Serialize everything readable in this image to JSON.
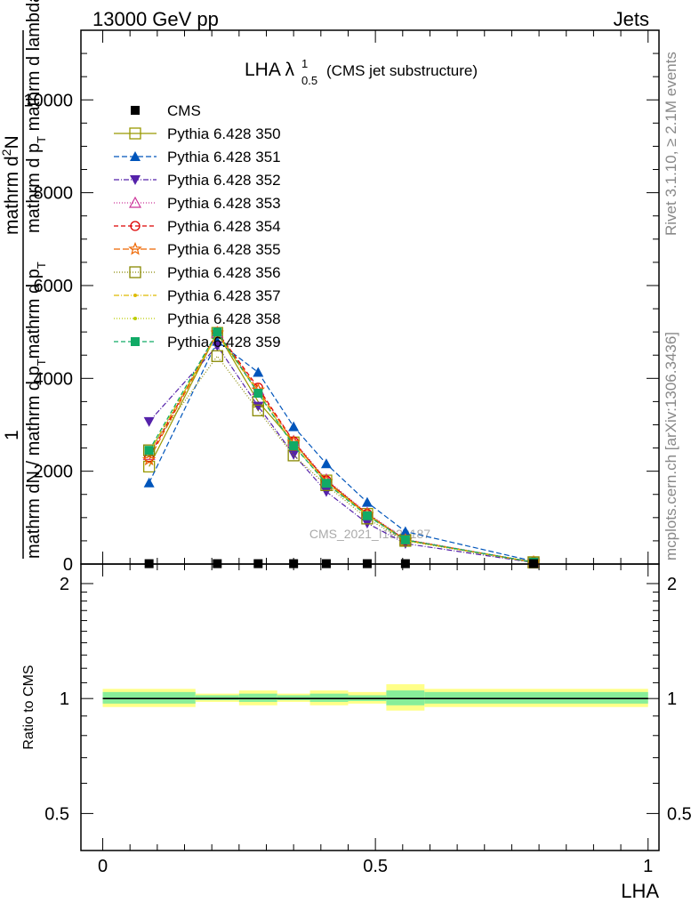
{
  "header": {
    "energy": "13000 GeV pp",
    "category": "Jets"
  },
  "side_labels": {
    "rivet": "Rivet 3.1.10, ≥ 2.1M events",
    "mcplots": "mcplots.cern.ch [arXiv:1306.3436]"
  },
  "watermark": "CMS_2021_I1920187",
  "chart_data": [
    {
      "type": "line",
      "title": "LHA λ",
      "title_sup": "1",
      "title_sub": "0.5",
      "title_note": "(CMS jet substructure)",
      "ylabel": "1 / mathrm dN / mathrm d p_T mathrm d p_T mathrm d^2N / mathrm d p_T mathrm d lambda",
      "ylabel_parts": [
        "1",
        "mathrm dN / mathrm d p",
        "T",
        "mathrm d p",
        "T",
        "mathrm d",
        "2",
        "N",
        "mathrm d p",
        "T",
        " mathrm d lambda"
      ],
      "xlim": [
        -0.04,
        1.02
      ],
      "ylim": [
        0,
        11500
      ],
      "y_ticks": [
        0,
        2000,
        4000,
        6000,
        8000,
        10000
      ],
      "x": [
        0.085,
        0.21,
        0.285,
        0.35,
        0.41,
        0.485,
        0.555,
        0.79
      ],
      "series": [
        {
          "name": "CMS",
          "color": "#000000",
          "marker": "square-filled",
          "dash": "",
          "values": [
            8,
            8,
            8,
            8,
            8,
            8,
            8,
            8
          ]
        },
        {
          "name": "Pythia 6.428 350",
          "color": "#999900",
          "marker": "square-open",
          "dash": "",
          "values": [
            2100,
            4980,
            3500,
            2620,
            1800,
            1080,
            520,
            40
          ]
        },
        {
          "name": "Pythia 6.428 351",
          "color": "#0055bb",
          "marker": "triangle-up-filled",
          "dash": "6,3",
          "values": [
            1750,
            4800,
            4130,
            2960,
            2160,
            1330,
            700,
            60
          ]
        },
        {
          "name": "Pythia 6.428 352",
          "color": "#5522aa",
          "marker": "triangle-down-filled",
          "dash": "6,2,1,2",
          "values": [
            3070,
            4700,
            3400,
            2360,
            1560,
            880,
            440,
            30
          ]
        },
        {
          "name": "Pythia 6.428 353",
          "color": "#cc3399",
          "marker": "triangle-up-open",
          "dash": "1,2",
          "values": [
            2350,
            4980,
            3750,
            2650,
            1820,
            1100,
            530,
            40
          ]
        },
        {
          "name": "Pythia 6.428 354",
          "color": "#dd0000",
          "marker": "circle-open",
          "dash": "5,3",
          "values": [
            2300,
            5000,
            3800,
            2640,
            1800,
            1080,
            520,
            40
          ]
        },
        {
          "name": "Pythia 6.428 355",
          "color": "#ee6600",
          "marker": "star-open",
          "dash": "7,3",
          "values": [
            2250,
            4980,
            3750,
            2620,
            1780,
            1070,
            510,
            40
          ]
        },
        {
          "name": "Pythia 6.428 356",
          "color": "#888800",
          "marker": "square-open",
          "dash": "1,2",
          "values": [
            2450,
            4480,
            3310,
            2340,
            1700,
            980,
            500,
            35
          ]
        },
        {
          "name": "Pythia 6.428 357",
          "color": "#ddbb00",
          "marker": "dot",
          "dash": "6,2,1,2",
          "values": [
            2400,
            4950,
            3700,
            2560,
            1750,
            1060,
            510,
            40
          ]
        },
        {
          "name": "Pythia 6.428 358",
          "color": "#bbcc00",
          "marker": "dot",
          "dash": "1,2",
          "values": [
            2400,
            4950,
            3700,
            2560,
            1750,
            1050,
            510,
            40
          ]
        },
        {
          "name": "Pythia 6.428 359",
          "color": "#11aa66",
          "marker": "square-filled",
          "dash": "5,3",
          "values": [
            2450,
            5000,
            3680,
            2550,
            1740,
            1040,
            520,
            40
          ]
        }
      ]
    },
    {
      "type": "area",
      "ylabel": "Ratio to CMS",
      "xlabel": "LHA",
      "xlim": [
        -0.04,
        1.02
      ],
      "ylim": [
        0.4,
        2.25
      ],
      "y_scale": "log",
      "y_ticks": [
        0.5,
        1,
        2
      ],
      "x_ticks": [
        0,
        0.5,
        1
      ],
      "bin_edges": [
        0,
        0.17,
        0.25,
        0.32,
        0.38,
        0.45,
        0.52,
        0.59,
        1.0
      ],
      "ratio": [
        1,
        1,
        1,
        1,
        1,
        1,
        1,
        1
      ],
      "band_outer": [
        [
          0.95,
          1.06
        ],
        [
          0.98,
          1.03
        ],
        [
          0.96,
          1.05
        ],
        [
          0.98,
          1.03
        ],
        [
          0.96,
          1.05
        ],
        [
          0.97,
          1.04
        ],
        [
          0.93,
          1.09
        ],
        [
          0.95,
          1.06
        ]
      ],
      "band_inner": [
        [
          0.97,
          1.04
        ],
        [
          0.99,
          1.02
        ],
        [
          0.98,
          1.03
        ],
        [
          0.99,
          1.02
        ],
        [
          0.98,
          1.03
        ],
        [
          0.985,
          1.02
        ],
        [
          0.96,
          1.05
        ],
        [
          0.97,
          1.04
        ]
      ],
      "colors": {
        "outer": "#ffff88",
        "inner": "#88ee99"
      }
    }
  ]
}
